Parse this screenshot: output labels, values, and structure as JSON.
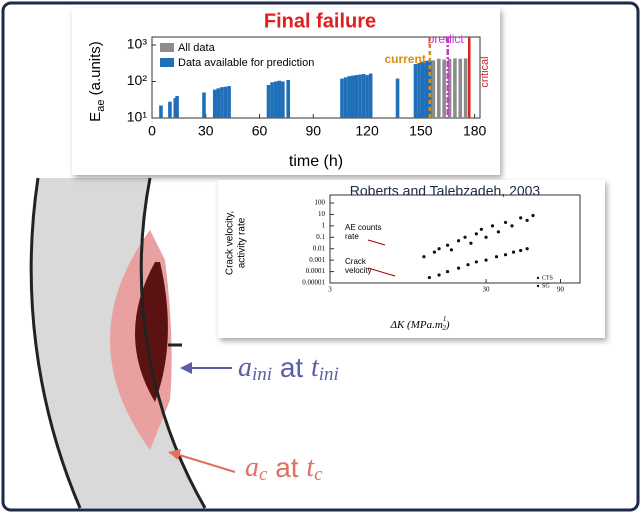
{
  "chart_data": [
    {
      "type": "bar",
      "title": "Final failure",
      "xlabel": "time (h)",
      "ylabel": [
        "E",
        "ae",
        " (a.units)"
      ],
      "ylog": true,
      "xlim": [
        0,
        183
      ],
      "xticks": [
        0,
        30,
        60,
        90,
        120,
        150,
        180
      ],
      "ylim": [
        10,
        1000
      ],
      "yticks": [
        {
          "value": 10,
          "label": "10¹"
        },
        {
          "value": 100,
          "label": "10²"
        },
        {
          "value": 1000,
          "label": "10³"
        }
      ],
      "series": [
        {
          "name": "All data",
          "color": "#8c8c8c",
          "x": [
            157,
            160,
            163,
            166,
            169,
            172,
            175
          ],
          "values": [
            380,
            420,
            400,
            420,
            430,
            420,
            430
          ]
        },
        {
          "name": "Data available for prediction",
          "color": "#1f6fb8",
          "x": [
            5,
            10,
            13,
            14,
            29,
            35,
            37,
            39,
            41,
            43,
            65,
            67,
            69,
            71,
            73,
            76,
            106,
            108,
            110,
            112,
            114,
            116,
            118,
            120,
            122,
            137,
            147,
            149,
            151,
            153,
            155
          ],
          "values": [
            22,
            28,
            35,
            40,
            50,
            60,
            65,
            70,
            72,
            75,
            80,
            95,
            100,
            105,
            100,
            110,
            120,
            130,
            140,
            145,
            150,
            155,
            160,
            150,
            165,
            120,
            300,
            320,
            350,
            370,
            380
          ]
        }
      ],
      "markers": [
        {
          "label": "current",
          "x": 155,
          "color": "#d98c1a"
        },
        {
          "label": "predict",
          "x": 165,
          "color": "#cc33cc"
        },
        {
          "label": "critical",
          "x": 177,
          "color": "#e02020"
        }
      ]
    },
    {
      "type": "scatter",
      "title": "Roberts and Talebzadeh, 2003",
      "xlabel": [
        "ΔK (MPa.m",
        "1",
        "2",
        ")"
      ],
      "ylabel": [
        "Crack velocity,",
        "activity rate"
      ],
      "xlog": true,
      "ylog": true,
      "xlim": [
        3,
        120
      ],
      "xticks": [
        3,
        30,
        90
      ],
      "ylim": [
        1e-05,
        100
      ],
      "yticks": [
        100,
        10,
        1,
        0.1,
        0.01,
        0.001,
        0.0001,
        1e-05
      ],
      "series": [
        {
          "name": "CTS",
          "color": "#111111",
          "x": [
            12,
            14,
            15,
            17,
            18,
            20,
            22,
            24,
            26,
            28,
            30,
            33,
            36,
            40,
            44,
            50,
            55,
            60
          ],
          "values": [
            0.002,
            0.005,
            0.01,
            0.02,
            0.008,
            0.05,
            0.1,
            0.03,
            0.2,
            0.5,
            0.1,
            1,
            0.3,
            2,
            1,
            5,
            3,
            8
          ]
        },
        {
          "name": "SG",
          "color": "#111111",
          "x": [
            13,
            15,
            17,
            20,
            23,
            26,
            30,
            35,
            40,
            45,
            50,
            55
          ],
          "values": [
            3e-05,
            5e-05,
            0.0001,
            0.0002,
            0.0004,
            0.0007,
            0.001,
            0.002,
            0.003,
            0.005,
            0.007,
            0.01
          ]
        }
      ],
      "annotations": [
        [
          "AE counts",
          "rate"
        ],
        [
          "Crack",
          "velocity"
        ]
      ]
    }
  ],
  "diagram": {
    "a_ini": [
      "a",
      "ini",
      " at ",
      "t",
      "ini"
    ],
    "a_c": [
      "a",
      "c",
      " at ",
      "t",
      "c"
    ]
  }
}
